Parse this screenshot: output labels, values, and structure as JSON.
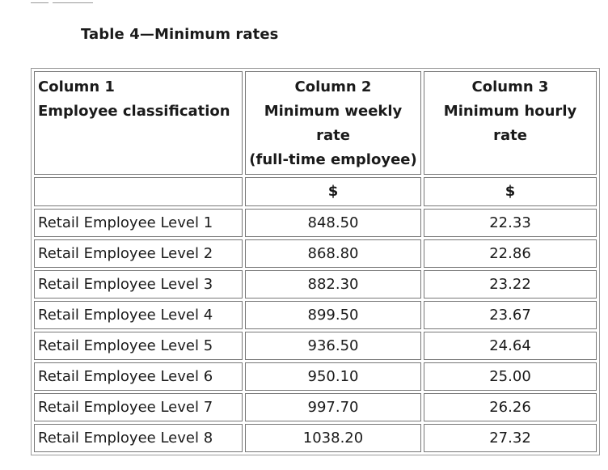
{
  "title": "Table 4—Minimum rates",
  "headers": [
    [
      "Column 1",
      "Employee classification"
    ],
    [
      "Column 2",
      "Minimum weekly",
      "rate",
      "(full-time employee)"
    ],
    [
      "Column 3",
      "Minimum hourly",
      "rate"
    ]
  ],
  "units": [
    "",
    "$",
    "$"
  ],
  "rows": [
    [
      "Retail Employee Level 1",
      "848.50",
      "22.33"
    ],
    [
      "Retail Employee Level 2",
      "868.80",
      "22.86"
    ],
    [
      "Retail Employee Level 3",
      "882.30",
      "23.22"
    ],
    [
      "Retail Employee Level 4",
      "899.50",
      "23.67"
    ],
    [
      "Retail Employee Level 5",
      "936.50",
      "24.64"
    ],
    [
      "Retail Employee Level 6",
      "950.10",
      "25.00"
    ],
    [
      "Retail Employee Level 7",
      "997.70",
      "26.26"
    ],
    [
      "Retail Employee Level 8",
      "1038.20",
      "27.32"
    ]
  ]
}
